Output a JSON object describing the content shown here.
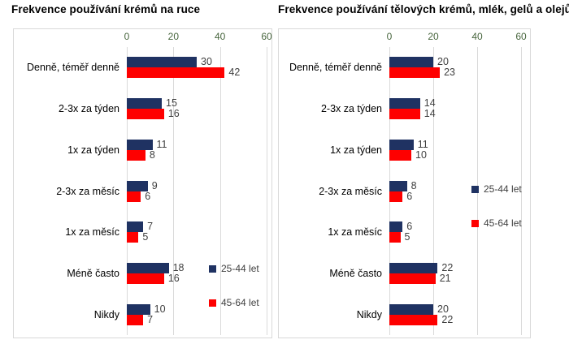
{
  "chart_data": [
    {
      "type": "bar",
      "orientation": "horizontal",
      "title": "Frekvence používání krémů na ruce",
      "categories": [
        "Denně, téměř denně",
        "2-3x za týden",
        "1x za týden",
        "2-3x za měsíc",
        "1x za měsíc",
        "Méně často",
        "Nikdy"
      ],
      "series": [
        {
          "name": "25-44 let",
          "color": "#1f3262",
          "values": [
            30,
            15,
            11,
            9,
            7,
            18,
            10
          ]
        },
        {
          "name": "45-64 let",
          "color": "#fe0000",
          "values": [
            42,
            16,
            8,
            6,
            5,
            16,
            7
          ]
        }
      ],
      "x_axis": {
        "ticks": [
          0,
          20,
          40,
          60
        ],
        "max": 60,
        "position": "top",
        "tick_color": "#48663e"
      },
      "grid": true,
      "gridline_color": "#dadada",
      "legend_position": "inside-right",
      "data_labels": true
    },
    {
      "type": "bar",
      "orientation": "horizontal",
      "title": "Frekvence používání tělových krémů, mlék, gelů a olejů",
      "categories": [
        "Denně, téměř denně",
        "2-3x za týden",
        "1x za týden",
        "2-3x za měsíc",
        "1x za měsíc",
        "Méně často",
        "Nikdy"
      ],
      "series": [
        {
          "name": "25-44 let",
          "color": "#1f3262",
          "values": [
            20,
            14,
            11,
            8,
            6,
            22,
            20
          ]
        },
        {
          "name": "45-64 let",
          "color": "#fe0000",
          "values": [
            23,
            14,
            10,
            6,
            5,
            21,
            22
          ]
        }
      ],
      "x_axis": {
        "ticks": [
          0,
          20,
          40,
          60
        ],
        "max": 60,
        "position": "top",
        "tick_color": "#48663e"
      },
      "grid": true,
      "gridline_color": "#dadada",
      "legend_position": "inside-right",
      "data_labels": true
    }
  ]
}
